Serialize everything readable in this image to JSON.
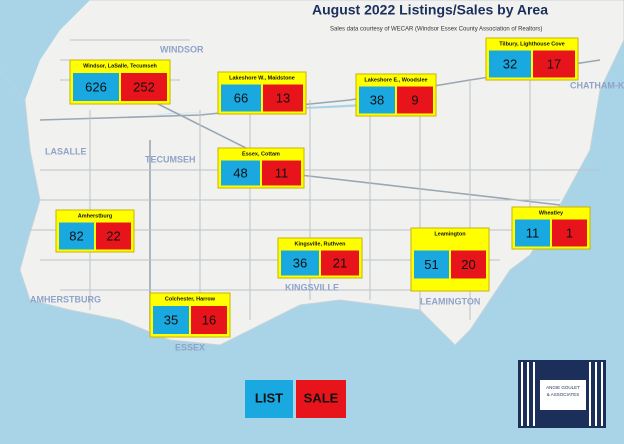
{
  "header": {
    "title": "August 2022 Listings/Sales by Area",
    "subtitle": "Sales data courtesy of WECAR (Windsor Essex County Association of Realtors)"
  },
  "areas": [
    {
      "name": "Windsor, LaSalle, Tecumseh",
      "list": "626",
      "sale": "252"
    },
    {
      "name": "Lakeshore W., Maidstone",
      "list": "66",
      "sale": "13"
    },
    {
      "name": "Lakeshore E., Woodslee",
      "list": "38",
      "sale": "9"
    },
    {
      "name": "Tilbury, Lighthouse Cove",
      "list": "32",
      "sale": "17"
    },
    {
      "name": "Essex, Cottam",
      "list": "48",
      "sale": "11"
    },
    {
      "name": "Amherstburg",
      "list": "82",
      "sale": "22"
    },
    {
      "name": "Wheatley",
      "list": "11",
      "sale": "1"
    },
    {
      "name": "Kingsville, Ruthven",
      "list": "36",
      "sale": "21"
    },
    {
      "name": "Leamington",
      "list": "51",
      "sale": "20"
    },
    {
      "name": "Colchester, Harrow",
      "list": "35",
      "sale": "16"
    }
  ],
  "legend": {
    "list": "LIST",
    "sale": "SALE"
  },
  "map_labels": [
    "WINDSOR",
    "LASALLE",
    "TECUMSEH",
    "AMHERSTBURG",
    "ESSEX",
    "KINGSVILLE",
    "LEAMINGTON",
    "CHATHAM-KENT"
  ],
  "logo": {
    "line1": "ANGIE GOULET",
    "line2": "& ASSOCIATES"
  }
}
